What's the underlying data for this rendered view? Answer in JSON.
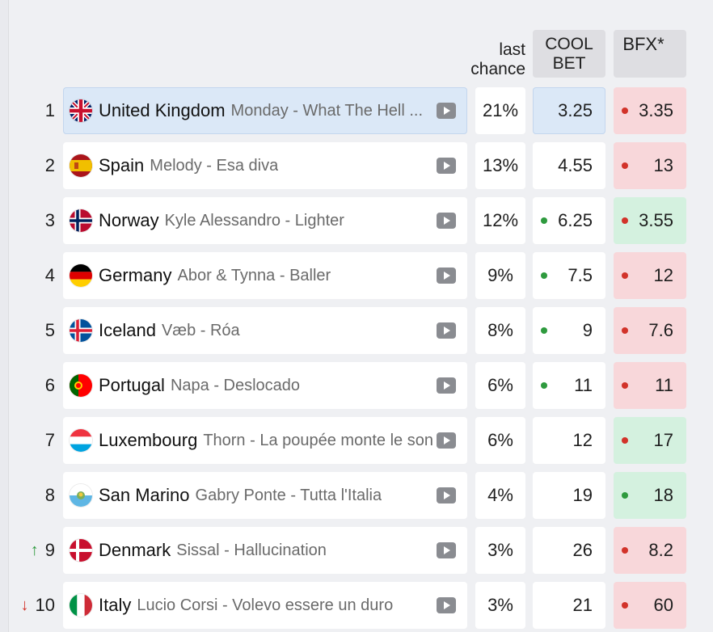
{
  "columns": {
    "last_chance_line1": "last",
    "last_chance_line2": "chance",
    "coolbet_line1": "COOL",
    "coolbet_line2": "BET",
    "bfx": "BFX*"
  },
  "colors": {
    "dot_green": "#2e9a3e",
    "dot_red": "#d2332a",
    "bfx_red_bg": "#f8d7da",
    "bfx_green_bg": "#d4f1df",
    "selected_bg": "#dbe8f7"
  },
  "rows": [
    {
      "rank": "1",
      "trend": "",
      "country": "United Kingdom",
      "flag": "uk",
      "artist": "Monday - What The Hell Just Happened?",
      "display_artist": "Monday - What The Hell ...",
      "chance": "21%",
      "coolbet": "3.25",
      "coolbet_dot": "",
      "bfx": "3.35",
      "bfx_dot": "red",
      "bfx_bg": "red",
      "selected": true
    },
    {
      "rank": "2",
      "trend": "",
      "country": "Spain",
      "flag": "es",
      "artist": "Melody - Esa diva",
      "chance": "13%",
      "coolbet": "4.55",
      "coolbet_dot": "",
      "bfx": "13",
      "bfx_dot": "red",
      "bfx_bg": "red"
    },
    {
      "rank": "3",
      "trend": "",
      "country": "Norway",
      "flag": "no",
      "artist": "Kyle Alessandro - Lighter",
      "chance": "12%",
      "coolbet": "6.25",
      "coolbet_dot": "green",
      "bfx": "3.55",
      "bfx_dot": "red",
      "bfx_bg": "green"
    },
    {
      "rank": "4",
      "trend": "",
      "country": "Germany",
      "flag": "de",
      "artist": "Abor & Tynna - Baller",
      "chance": "9%",
      "coolbet": "7.5",
      "coolbet_dot": "green",
      "bfx": "12",
      "bfx_dot": "red",
      "bfx_bg": "red"
    },
    {
      "rank": "5",
      "trend": "",
      "country": "Iceland",
      "flag": "is",
      "artist": "Væb - Róa",
      "chance": "8%",
      "coolbet": "9",
      "coolbet_dot": "green",
      "bfx": "7.6",
      "bfx_dot": "red",
      "bfx_bg": "red"
    },
    {
      "rank": "6",
      "trend": "",
      "country": "Portugal",
      "flag": "pt",
      "artist": "Napa - Deslocado",
      "chance": "6%",
      "coolbet": "11",
      "coolbet_dot": "green",
      "bfx": "11",
      "bfx_dot": "red",
      "bfx_bg": "red"
    },
    {
      "rank": "7",
      "trend": "",
      "country": "Luxembourg",
      "flag": "lu",
      "artist": "Thorn - La poupée monte le son",
      "chance": "6%",
      "coolbet": "12",
      "coolbet_dot": "",
      "bfx": "17",
      "bfx_dot": "red",
      "bfx_bg": "green"
    },
    {
      "rank": "8",
      "trend": "",
      "country": "San Marino",
      "flag": "sm",
      "artist": "Gabry Ponte - Tutta l'Italia",
      "chance": "4%",
      "coolbet": "19",
      "coolbet_dot": "",
      "bfx": "18",
      "bfx_dot": "green",
      "bfx_bg": "green"
    },
    {
      "rank": "9",
      "trend": "up",
      "country": "Denmark",
      "flag": "dk",
      "artist": "Sissal - Hallucination",
      "chance": "3%",
      "coolbet": "26",
      "coolbet_dot": "",
      "bfx": "8.2",
      "bfx_dot": "red",
      "bfx_bg": "red"
    },
    {
      "rank": "10",
      "trend": "down",
      "country": "Italy",
      "flag": "it",
      "artist": "Lucio Corsi - Volevo essere un duro",
      "chance": "3%",
      "coolbet": "21",
      "coolbet_dot": "",
      "bfx": "60",
      "bfx_dot": "red",
      "bfx_bg": "red"
    }
  ]
}
